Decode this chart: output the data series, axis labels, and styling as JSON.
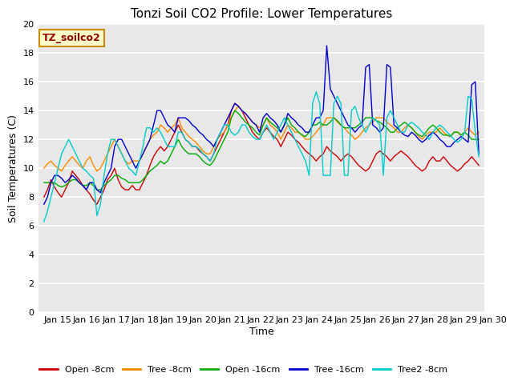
{
  "title": "Tonzi Soil CO2 Profile: Lower Temperatures",
  "xlabel": "Time",
  "ylabel": "Soil Temperatures (C)",
  "watermark": "TZ_soilco2",
  "ylim": [
    0,
    20
  ],
  "yticks": [
    0,
    2,
    4,
    6,
    8,
    10,
    12,
    14,
    16,
    18,
    20
  ],
  "xtick_labels": [
    "Jan 15",
    "Jan 16",
    "Jan 17",
    "Jan 18",
    "Jan 19",
    "Jan 20",
    "Jan 21",
    "Jan 22",
    "Jan 23",
    "Jan 24",
    "Jan 25",
    "Jan 26",
    "Jan 27",
    "Jan 28",
    "Jan 29",
    "Jan 30"
  ],
  "bg_color": "#e8e8e8",
  "fig_bg": "#ffffff",
  "grid_color": "#ffffff",
  "title_fontsize": 11,
  "label_fontsize": 9,
  "tick_fontsize": 8,
  "legend_fontsize": 8,
  "series": {
    "open8": {
      "color": "#cc0000",
      "label": "Open -8cm",
      "values": [
        8.0,
        8.5,
        9.2,
        8.7,
        8.3,
        8.0,
        8.5,
        9.0,
        9.8,
        9.5,
        9.2,
        8.8,
        8.5,
        8.2,
        7.8,
        7.5,
        8.0,
        8.5,
        9.2,
        9.5,
        10.0,
        9.2,
        8.7,
        8.5,
        8.5,
        8.8,
        8.5,
        8.5,
        9.0,
        9.5,
        10.2,
        10.8,
        11.2,
        11.5,
        11.2,
        11.5,
        12.0,
        12.5,
        13.0,
        12.5,
        12.0,
        11.8,
        11.5,
        11.5,
        11.2,
        11.0,
        10.8,
        10.5,
        11.0,
        11.5,
        12.0,
        12.5,
        13.0,
        14.0,
        14.5,
        14.3,
        14.0,
        13.5,
        13.0,
        12.5,
        12.2,
        12.0,
        12.5,
        12.8,
        12.5,
        12.2,
        12.0,
        11.5,
        12.0,
        12.5,
        12.3,
        12.0,
        11.8,
        11.5,
        11.2,
        11.0,
        10.8,
        10.5,
        10.8,
        11.0,
        11.5,
        11.2,
        11.0,
        10.8,
        10.5,
        10.8,
        11.0,
        10.8,
        10.5,
        10.2,
        10.0,
        9.8,
        10.0,
        10.5,
        11.0,
        11.2,
        11.0,
        10.8,
        10.5,
        10.8,
        11.0,
        11.2,
        11.0,
        10.8,
        10.5,
        10.2,
        10.0,
        9.8,
        10.0,
        10.5,
        10.8,
        10.5,
        10.5,
        10.8,
        10.5,
        10.2,
        10.0,
        9.8,
        10.0,
        10.3,
        10.5,
        10.8,
        10.5,
        10.2
      ]
    },
    "tree8": {
      "color": "#ff8800",
      "label": "Tree -8cm",
      "values": [
        10.0,
        10.3,
        10.5,
        10.2,
        10.0,
        9.8,
        10.2,
        10.5,
        10.8,
        10.5,
        10.2,
        10.0,
        10.5,
        10.8,
        10.2,
        9.8,
        10.0,
        10.5,
        11.0,
        11.5,
        12.0,
        11.5,
        11.0,
        10.5,
        10.3,
        10.5,
        10.5,
        10.5,
        11.0,
        11.5,
        12.0,
        12.3,
        12.5,
        13.0,
        12.8,
        12.5,
        12.8,
        13.0,
        13.5,
        12.8,
        12.5,
        12.2,
        12.0,
        11.8,
        11.5,
        11.2,
        11.0,
        11.0,
        11.5,
        12.0,
        12.3,
        12.5,
        13.0,
        13.5,
        14.0,
        14.3,
        14.0,
        13.8,
        13.5,
        13.2,
        13.0,
        12.8,
        13.0,
        13.5,
        13.0,
        12.8,
        12.5,
        12.0,
        12.5,
        13.0,
        12.8,
        12.5,
        12.5,
        12.3,
        12.0,
        12.0,
        12.2,
        12.5,
        12.8,
        13.0,
        13.5,
        13.5,
        13.5,
        13.2,
        13.0,
        12.8,
        12.5,
        12.3,
        12.0,
        12.2,
        12.5,
        12.8,
        13.0,
        13.2,
        13.5,
        13.5,
        13.5,
        13.2,
        13.0,
        12.8,
        12.5,
        12.5,
        12.8,
        13.0,
        12.8,
        12.5,
        12.2,
        12.0,
        12.3,
        12.5,
        12.5,
        12.5,
        12.8,
        12.5,
        12.3,
        12.2,
        12.5,
        12.5,
        12.3,
        12.5,
        12.8,
        12.5,
        12.3,
        12.5
      ]
    },
    "open16": {
      "color": "#00aa00",
      "label": "Open -16cm",
      "values": [
        9.0,
        9.0,
        9.0,
        9.0,
        8.8,
        8.7,
        8.8,
        9.0,
        9.2,
        9.2,
        9.0,
        8.8,
        8.8,
        9.0,
        8.8,
        8.5,
        8.5,
        8.8,
        9.0,
        9.2,
        9.5,
        9.5,
        9.3,
        9.2,
        9.0,
        9.0,
        9.0,
        9.0,
        9.2,
        9.5,
        9.8,
        10.0,
        10.2,
        10.5,
        10.3,
        10.5,
        11.0,
        11.5,
        12.0,
        11.5,
        11.2,
        11.0,
        11.0,
        11.0,
        10.8,
        10.5,
        10.3,
        10.2,
        10.5,
        11.0,
        11.5,
        12.0,
        12.5,
        13.5,
        14.0,
        13.8,
        13.5,
        13.2,
        13.0,
        12.8,
        12.5,
        12.3,
        13.0,
        13.5,
        13.2,
        13.0,
        12.8,
        12.5,
        13.0,
        13.5,
        13.0,
        12.8,
        12.5,
        12.3,
        12.2,
        12.5,
        13.0,
        13.0,
        13.2,
        13.0,
        13.0,
        13.2,
        13.5,
        13.3,
        13.0,
        12.8,
        12.8,
        12.8,
        12.8,
        13.0,
        13.2,
        13.5,
        13.5,
        13.5,
        13.3,
        13.2,
        13.0,
        12.8,
        12.5,
        12.5,
        12.8,
        13.0,
        13.2,
        13.0,
        12.8,
        12.5,
        12.3,
        12.2,
        12.5,
        12.8,
        13.0,
        12.8,
        12.5,
        12.3,
        12.3,
        12.2,
        12.5,
        12.5,
        12.3,
        12.5,
        12.3,
        12.0,
        12.0,
        12.0
      ]
    },
    "tree16": {
      "color": "#0000cc",
      "label": "Tree -16cm",
      "values": [
        7.5,
        8.0,
        9.0,
        9.5,
        9.5,
        9.3,
        9.0,
        9.2,
        9.5,
        9.3,
        9.0,
        8.8,
        8.5,
        9.0,
        9.0,
        8.5,
        8.3,
        9.0,
        9.5,
        10.0,
        11.5,
        12.0,
        12.0,
        11.5,
        11.0,
        10.5,
        10.0,
        10.5,
        11.0,
        11.5,
        12.0,
        13.0,
        14.0,
        14.0,
        13.5,
        13.0,
        12.8,
        12.5,
        13.5,
        13.5,
        13.5,
        13.3,
        13.0,
        12.8,
        12.5,
        12.3,
        12.0,
        11.8,
        11.5,
        12.0,
        12.5,
        13.0,
        13.5,
        14.0,
        14.5,
        14.3,
        14.0,
        13.8,
        13.5,
        13.2,
        13.0,
        12.5,
        13.5,
        13.8,
        13.5,
        13.3,
        13.0,
        12.5,
        13.0,
        13.8,
        13.5,
        13.3,
        13.0,
        12.8,
        12.5,
        12.5,
        13.0,
        13.5,
        13.5,
        14.0,
        18.5,
        15.5,
        15.0,
        14.5,
        14.0,
        13.5,
        13.0,
        12.8,
        12.5,
        12.8,
        13.0,
        17.0,
        17.2,
        13.0,
        12.8,
        12.5,
        12.8,
        17.2,
        17.0,
        13.0,
        12.8,
        12.5,
        12.3,
        12.2,
        12.5,
        12.3,
        12.0,
        11.8,
        12.0,
        12.3,
        12.5,
        12.3,
        12.0,
        11.8,
        11.5,
        11.5,
        11.8,
        12.0,
        12.2,
        12.0,
        11.8,
        15.8,
        16.0,
        11.0
      ]
    },
    "tree2_8": {
      "color": "#00cccc",
      "label": "Tree2 -8cm",
      "values": [
        6.3,
        7.0,
        8.0,
        9.0,
        10.0,
        11.0,
        11.5,
        12.0,
        11.5,
        11.0,
        10.5,
        10.0,
        9.8,
        9.5,
        9.3,
        6.7,
        7.5,
        9.5,
        11.0,
        12.0,
        12.0,
        11.5,
        11.0,
        10.5,
        10.0,
        9.8,
        9.5,
        10.5,
        11.5,
        12.8,
        12.8,
        12.5,
        12.8,
        12.5,
        12.0,
        11.5,
        11.5,
        11.5,
        12.5,
        12.5,
        12.0,
        11.8,
        11.5,
        11.5,
        11.3,
        11.0,
        10.8,
        10.5,
        11.0,
        12.0,
        12.5,
        13.0,
        13.0,
        12.5,
        12.3,
        12.5,
        13.0,
        13.0,
        12.5,
        12.2,
        12.0,
        12.0,
        12.5,
        13.0,
        12.5,
        12.0,
        12.5,
        13.0,
        13.5,
        13.0,
        12.5,
        12.0,
        11.5,
        11.0,
        10.5,
        9.5,
        14.5,
        15.3,
        14.5,
        9.5,
        9.5,
        9.5,
        14.5,
        15.0,
        14.5,
        9.5,
        9.5,
        14.0,
        14.3,
        13.5,
        13.0,
        12.5,
        13.0,
        13.5,
        13.3,
        13.0,
        9.5,
        13.5,
        14.0,
        13.5,
        13.0,
        12.5,
        12.5,
        13.0,
        13.2,
        13.0,
        12.8,
        12.5,
        12.3,
        12.0,
        12.5,
        12.8,
        13.0,
        12.8,
        12.5,
        12.3,
        12.0,
        11.8,
        12.0,
        12.5,
        15.0,
        14.8,
        12.5,
        10.8
      ]
    }
  }
}
